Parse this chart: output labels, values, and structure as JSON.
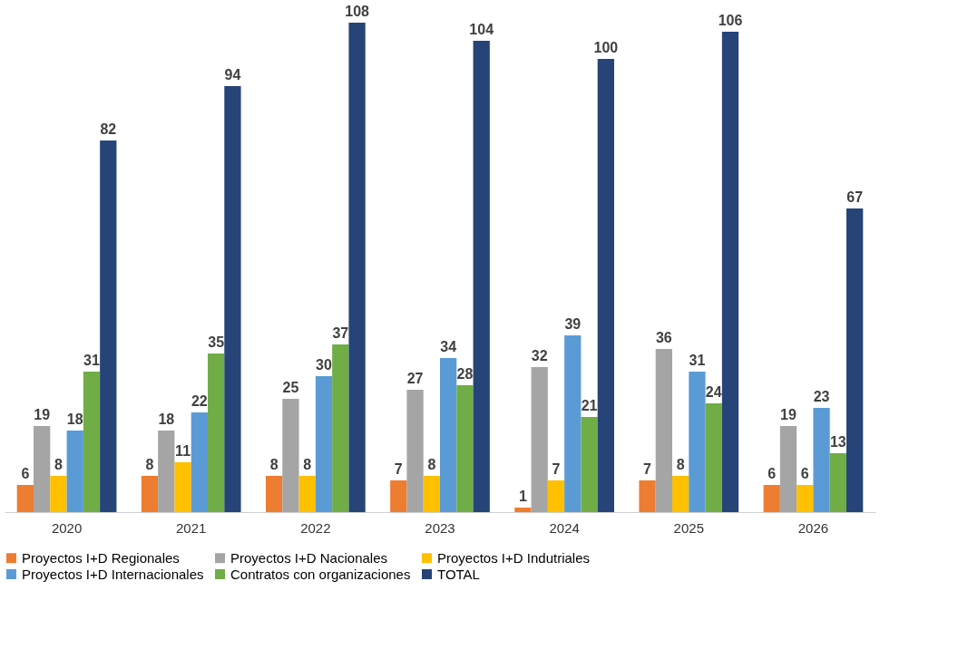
{
  "chart_data": {
    "type": "bar",
    "categories": [
      "2020",
      "2021",
      "2022",
      "2023",
      "2024",
      "2025",
      "2026"
    ],
    "series": [
      {
        "name": "Proyectos I+D Regionales",
        "color": "#ed7d31",
        "values": [
          6,
          8,
          8,
          7,
          1,
          7,
          6
        ]
      },
      {
        "name": "Proyectos I+D Nacionales",
        "color": "#a5a5a5",
        "values": [
          19,
          18,
          25,
          27,
          32,
          36,
          19
        ]
      },
      {
        "name": "Proyectos I+D Indutriales",
        "color": "#ffc000",
        "values": [
          8,
          11,
          8,
          8,
          7,
          8,
          6
        ]
      },
      {
        "name": "Proyectos I+D Internacionales",
        "color": "#5b9bd5",
        "values": [
          18,
          22,
          30,
          34,
          39,
          31,
          23
        ]
      },
      {
        "name": "Contratos con organizaciones",
        "color": "#70ad47",
        "values": [
          31,
          35,
          37,
          28,
          21,
          24,
          13
        ]
      },
      {
        "name": "TOTAL",
        "color": "#264478",
        "values": [
          82,
          94,
          108,
          104,
          100,
          106,
          67
        ]
      }
    ],
    "data_labels": true,
    "legend": "bottom",
    "grid": false
  }
}
